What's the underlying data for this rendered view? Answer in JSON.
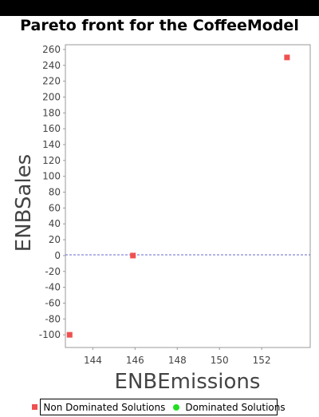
{
  "chart_data": {
    "type": "scatter",
    "title": "Pareto front for the CoffeeModel",
    "xlabel": "ENBEmissions",
    "ylabel": "ENBSales",
    "xlim": [
      142.7,
      154.3
    ],
    "ylim": [
      -116,
      266
    ],
    "x_ticks": [
      144,
      146,
      148,
      150,
      152
    ],
    "y_ticks": [
      -100,
      -80,
      -60,
      -40,
      -20,
      0,
      20,
      40,
      60,
      80,
      100,
      120,
      140,
      160,
      180,
      200,
      220,
      240,
      260
    ],
    "zero_line": true,
    "grid": false,
    "legend_position": "bottom",
    "series": [
      {
        "name": "Non Dominated Solutions",
        "color": "#f05050",
        "marker": "square",
        "points": [
          {
            "x": 142.9,
            "y": -100
          },
          {
            "x": 145.9,
            "y": 0
          },
          {
            "x": 153.2,
            "y": 250
          }
        ]
      },
      {
        "name": "Dominated Solutions",
        "color": "#22dd22",
        "marker": "circle",
        "points": []
      }
    ]
  }
}
